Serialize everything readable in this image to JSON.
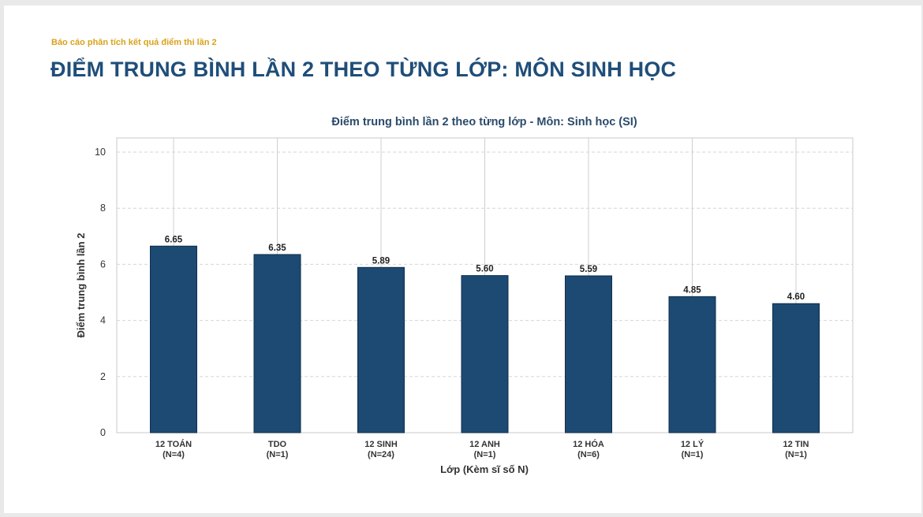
{
  "page": {
    "subtitle": "Báo cáo phân tích kết quả điểm thi lần 2",
    "title": "ĐIỂM TRUNG BÌNH LẦN 2 THEO TỪNG LỚP: MÔN SINH HỌC"
  },
  "colors": {
    "bar": "#1c4a72",
    "title": "#1f4e79",
    "subtitle": "#d9a21b",
    "chart_title": "#2b4a6b"
  },
  "chart_data": {
    "type": "bar",
    "title": "Điểm trung bình lần 2 theo từng lớp - Môn: Sinh học (SI)",
    "xlabel": "Lớp (Kèm sĩ số N)",
    "ylabel": "Điểm trung bình lần 2",
    "ylim": [
      0,
      10.5
    ],
    "yticks": [
      0,
      2,
      4,
      6,
      8,
      10
    ],
    "grid": true,
    "categories": [
      {
        "name": "12 TOÁN",
        "n": "(N=4)"
      },
      {
        "name": "TDO",
        "n": "(N=1)"
      },
      {
        "name": "12 SINH",
        "n": "(N=24)"
      },
      {
        "name": "12 ANH",
        "n": "(N=1)"
      },
      {
        "name": "12 HÓA",
        "n": "(N=6)"
      },
      {
        "name": "12 LÝ",
        "n": "(N=1)"
      },
      {
        "name": "12 TIN",
        "n": "(N=1)"
      }
    ],
    "values": [
      6.65,
      6.35,
      5.89,
      5.6,
      5.59,
      4.85,
      4.6
    ],
    "value_labels": [
      "6.65",
      "6.35",
      "5.89",
      "5.60",
      "5.59",
      "4.85",
      "4.60"
    ]
  }
}
